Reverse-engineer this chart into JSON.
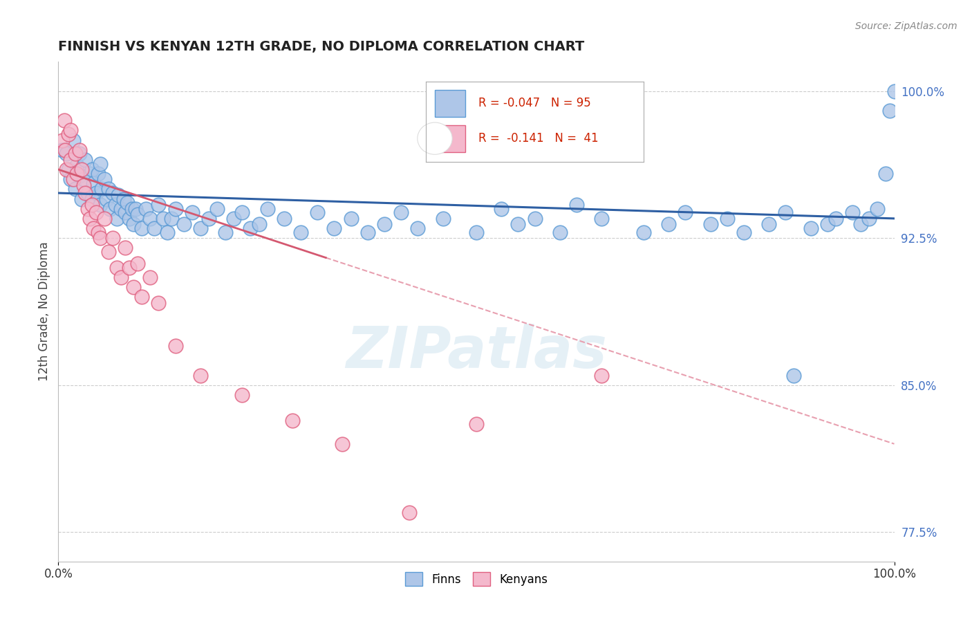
{
  "title": "FINNISH VS KENYAN 12TH GRADE, NO DIPLOMA CORRELATION CHART",
  "ylabel": "12th Grade, No Diploma",
  "source": "Source: ZipAtlas.com",
  "watermark": "ZIPatlas",
  "finn_R": -0.047,
  "finn_N": 95,
  "ken_R": -0.141,
  "ken_N": 41,
  "xlim": [
    0.0,
    1.0
  ],
  "ylim": [
    0.76,
    1.015
  ],
  "right_yticks": [
    1.0,
    0.925,
    0.85,
    0.775
  ],
  "right_yticklabels": [
    "100.0%",
    "92.5%",
    "85.0%",
    "77.5%"
  ],
  "xtick_positions": [
    0.0,
    1.0
  ],
  "xticklabels": [
    "0.0%",
    "100.0%"
  ],
  "finn_color": "#aec6e8",
  "finn_edge": "#5b9bd5",
  "ken_color": "#f4b8cc",
  "ken_edge": "#e06080",
  "finn_line_color": "#2e5fa3",
  "ken_line_color": "#d45870",
  "dash_line_color": "#e8a0b0",
  "legend_finn_label": "Finns",
  "legend_ken_label": "Kenyans",
  "finn_x": [
    0.005,
    0.01,
    0.012,
    0.015,
    0.018,
    0.02,
    0.022,
    0.025,
    0.025,
    0.028,
    0.03,
    0.032,
    0.035,
    0.038,
    0.04,
    0.04,
    0.042,
    0.045,
    0.048,
    0.05,
    0.05,
    0.052,
    0.055,
    0.058,
    0.06,
    0.062,
    0.065,
    0.068,
    0.07,
    0.072,
    0.075,
    0.078,
    0.08,
    0.082,
    0.085,
    0.088,
    0.09,
    0.092,
    0.095,
    0.1,
    0.105,
    0.11,
    0.115,
    0.12,
    0.125,
    0.13,
    0.135,
    0.14,
    0.15,
    0.16,
    0.17,
    0.18,
    0.19,
    0.2,
    0.21,
    0.22,
    0.23,
    0.24,
    0.25,
    0.27,
    0.29,
    0.31,
    0.33,
    0.35,
    0.37,
    0.39,
    0.41,
    0.43,
    0.46,
    0.5,
    0.53,
    0.55,
    0.57,
    0.6,
    0.62,
    0.65,
    0.7,
    0.73,
    0.75,
    0.78,
    0.8,
    0.82,
    0.85,
    0.87,
    0.88,
    0.9,
    0.92,
    0.93,
    0.95,
    0.96,
    0.97,
    0.98,
    0.99,
    0.995,
    1.0
  ],
  "finn_y": [
    0.97,
    0.968,
    0.96,
    0.955,
    0.975,
    0.95,
    0.962,
    0.957,
    0.968,
    0.945,
    0.955,
    0.965,
    0.948,
    0.958,
    0.945,
    0.96,
    0.953,
    0.948,
    0.958,
    0.942,
    0.963,
    0.95,
    0.955,
    0.945,
    0.95,
    0.94,
    0.948,
    0.942,
    0.935,
    0.947,
    0.94,
    0.945,
    0.938,
    0.943,
    0.935,
    0.94,
    0.932,
    0.94,
    0.937,
    0.93,
    0.94,
    0.935,
    0.93,
    0.942,
    0.935,
    0.928,
    0.935,
    0.94,
    0.932,
    0.938,
    0.93,
    0.935,
    0.94,
    0.928,
    0.935,
    0.938,
    0.93,
    0.932,
    0.94,
    0.935,
    0.928,
    0.938,
    0.93,
    0.935,
    0.928,
    0.932,
    0.938,
    0.93,
    0.935,
    0.928,
    0.94,
    0.932,
    0.935,
    0.928,
    0.942,
    0.935,
    0.928,
    0.932,
    0.938,
    0.932,
    0.935,
    0.928,
    0.932,
    0.938,
    0.855,
    0.93,
    0.932,
    0.935,
    0.938,
    0.932,
    0.935,
    0.94,
    0.958,
    0.99,
    1.0
  ],
  "ken_x": [
    0.005,
    0.007,
    0.008,
    0.01,
    0.012,
    0.015,
    0.015,
    0.018,
    0.02,
    0.022,
    0.025,
    0.028,
    0.03,
    0.032,
    0.035,
    0.038,
    0.04,
    0.042,
    0.045,
    0.048,
    0.05,
    0.055,
    0.06,
    0.065,
    0.07,
    0.075,
    0.08,
    0.085,
    0.09,
    0.095,
    0.1,
    0.11,
    0.12,
    0.14,
    0.17,
    0.22,
    0.28,
    0.34,
    0.42,
    0.5,
    0.65
  ],
  "ken_y": [
    0.975,
    0.985,
    0.97,
    0.96,
    0.978,
    0.965,
    0.98,
    0.955,
    0.968,
    0.958,
    0.97,
    0.96,
    0.952,
    0.948,
    0.94,
    0.935,
    0.942,
    0.93,
    0.938,
    0.928,
    0.925,
    0.935,
    0.918,
    0.925,
    0.91,
    0.905,
    0.92,
    0.91,
    0.9,
    0.912,
    0.895,
    0.905,
    0.892,
    0.87,
    0.855,
    0.845,
    0.832,
    0.82,
    0.785,
    0.83,
    0.855
  ],
  "finn_trend_x": [
    0.0,
    1.0
  ],
  "finn_trend_y": [
    0.948,
    0.935
  ],
  "ken_solid_trend_x": [
    0.0,
    0.32
  ],
  "ken_solid_trend_y": [
    0.96,
    0.915
  ],
  "ken_dash_trend_x": [
    0.32,
    1.0
  ],
  "ken_dash_trend_y": [
    0.915,
    0.82
  ]
}
